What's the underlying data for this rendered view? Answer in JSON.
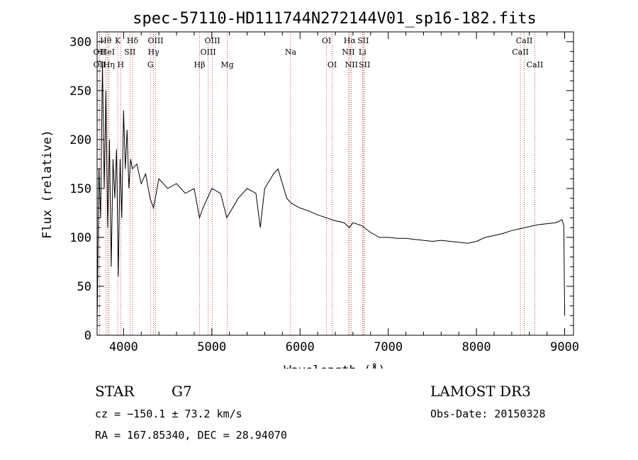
{
  "chart_data": {
    "type": "line",
    "title": "spec-57110-HD111744N272144V01_sp16-182.fits",
    "xlabel": "Wavelength (Å)",
    "ylabel": "Flux (relative)",
    "xlim": [
      3700,
      9100
    ],
    "ylim": [
      0,
      310
    ],
    "xticks": [
      4000,
      5000,
      6000,
      7000,
      8000,
      9000
    ],
    "yticks": [
      0,
      50,
      100,
      150,
      200,
      250,
      300
    ],
    "x": [
      3700,
      3720,
      3740,
      3760,
      3780,
      3800,
      3820,
      3840,
      3860,
      3880,
      3900,
      3920,
      3940,
      3960,
      3980,
      4000,
      4020,
      4040,
      4060,
      4080,
      4100,
      4150,
      4200,
      4250,
      4300,
      4340,
      4400,
      4500,
      4600,
      4700,
      4800,
      4860,
      4900,
      5000,
      5100,
      5170,
      5300,
      5400,
      5500,
      5550,
      5580,
      5600,
      5700,
      5750,
      5800,
      5850,
      5900,
      6000,
      6100,
      6200,
      6300,
      6400,
      6500,
      6560,
      6600,
      6700,
      6800,
      6900,
      7000,
      7100,
      7200,
      7300,
      7400,
      7500,
      7600,
      7700,
      7800,
      7900,
      8000,
      8100,
      8200,
      8300,
      8400,
      8500,
      8600,
      8700,
      8800,
      8900,
      8970,
      8990,
      9000
    ],
    "values": [
      10,
      170,
      120,
      280,
      150,
      250,
      110,
      200,
      70,
      180,
      140,
      190,
      60,
      180,
      120,
      230,
      170,
      210,
      150,
      180,
      170,
      175,
      155,
      165,
      140,
      130,
      160,
      150,
      155,
      145,
      150,
      120,
      130,
      150,
      145,
      120,
      140,
      150,
      145,
      110,
      135,
      150,
      165,
      170,
      155,
      140,
      135,
      130,
      127,
      123,
      120,
      117,
      115,
      110,
      115,
      112,
      105,
      100,
      100,
      99,
      99,
      98,
      97,
      96,
      97,
      96,
      95,
      94,
      96,
      100,
      102,
      104,
      107,
      109,
      111,
      113,
      114,
      115,
      118,
      112,
      20
    ],
    "lines": [
      {
        "label": "OII",
        "x": 3727,
        "row": 3
      },
      {
        "label": "Hθ",
        "x": 3798,
        "row": 1
      },
      {
        "label": "OII",
        "x": 3727,
        "row": 2
      },
      {
        "label": "HeI",
        "x": 3820,
        "row": 2
      },
      {
        "label": "Hη",
        "x": 3835,
        "row": 3
      },
      {
        "label": "K",
        "x": 3934,
        "row": 1
      },
      {
        "label": "H",
        "x": 3968,
        "row": 3
      },
      {
        "label": "SII",
        "x": 4072,
        "row": 2
      },
      {
        "label": "Hδ",
        "x": 4102,
        "row": 1
      },
      {
        "label": "OIII",
        "x": 4363,
        "row": 1
      },
      {
        "label": "Hγ",
        "x": 4340,
        "row": 2
      },
      {
        "label": "G",
        "x": 4305,
        "row": 3
      },
      {
        "label": "Hβ",
        "x": 4861,
        "row": 3
      },
      {
        "label": "OIII",
        "x": 5007,
        "row": 1
      },
      {
        "label": "OIII",
        "x": 4959,
        "row": 2
      },
      {
        "label": "Mg",
        "x": 5175,
        "row": 3
      },
      {
        "label": "Na",
        "x": 5893,
        "row": 2
      },
      {
        "label": "OI",
        "x": 6300,
        "row": 1
      },
      {
        "label": "OI",
        "x": 6364,
        "row": 3
      },
      {
        "label": "Hα",
        "x": 6563,
        "row": 1
      },
      {
        "label": "SII",
        "x": 6716,
        "row": 1
      },
      {
        "label": "NII",
        "x": 6548,
        "row": 2
      },
      {
        "label": "Li",
        "x": 6708,
        "row": 2
      },
      {
        "label": "NII",
        "x": 6583,
        "row": 3
      },
      {
        "label": "SII",
        "x": 6731,
        "row": 3
      },
      {
        "label": "CaII",
        "x": 8542,
        "row": 1
      },
      {
        "label": "CaII",
        "x": 8498,
        "row": 2
      },
      {
        "label": "CaII",
        "x": 8662,
        "row": 3
      }
    ]
  },
  "info": {
    "object_type": "STAR",
    "spectral_class": "G7",
    "survey": "LAMOST DR3",
    "cz": "cz = −150.1 ± 73.2 km/s",
    "obs_date": "Obs-Date: 20150328",
    "coords": "RA = 167.85340, DEC =  28.94070"
  }
}
